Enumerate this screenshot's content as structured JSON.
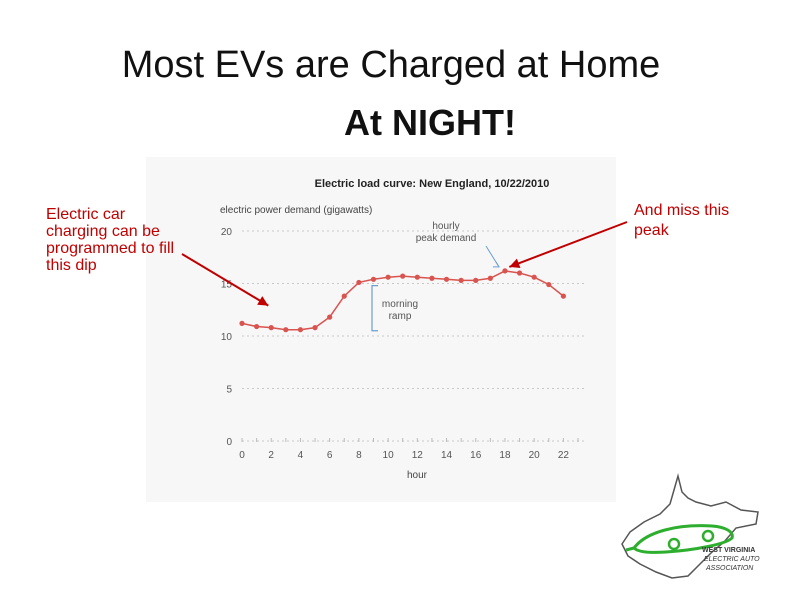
{
  "slide": {
    "title_line1": "Most EVs are Charged at Home",
    "title_line2": "At NIGHT!",
    "note_left": "Electric car charging can be programmed to fill this dip",
    "note_right": "And miss this peak"
  },
  "logo": {
    "text_line1": "WEST VIRGINIA",
    "text_line2": "ELECTRIC AUTO",
    "text_line3": "ASSOCIATION",
    "car_color": "#2eae2e",
    "outline_color": "#555555"
  },
  "colors": {
    "accent_red": "#c00000",
    "series": "#d9534f"
  },
  "chart_data": {
    "type": "line",
    "title": "Electric load curve: New England, 10/22/2010",
    "ylabel": "electric power demand (gigawatts)",
    "xlabel": "hour",
    "ylim": [
      0,
      20
    ],
    "xlim": [
      0,
      23
    ],
    "yticks": [
      0,
      5,
      10,
      15,
      20
    ],
    "xticks": [
      0,
      2,
      4,
      6,
      8,
      10,
      12,
      14,
      16,
      18,
      20,
      22
    ],
    "grid": "horizontal",
    "annotations": [
      {
        "text_line1": "hourly",
        "text_line2": "peak demand",
        "target_x": 18,
        "target_y": 16.2
      },
      {
        "text_line1": "morning",
        "text_line2": "ramp",
        "from_y": 10.5,
        "to_y": 14.8
      }
    ],
    "series": [
      {
        "x": [
          0,
          1,
          2,
          3,
          4,
          5,
          6,
          7,
          8,
          9,
          10,
          11,
          12,
          13,
          14,
          15,
          16,
          17,
          18,
          19,
          20,
          21,
          22
        ],
        "values": [
          11.2,
          10.9,
          10.8,
          10.6,
          10.6,
          10.8,
          11.8,
          13.8,
          15.1,
          15.4,
          15.6,
          15.7,
          15.6,
          15.5,
          15.4,
          15.3,
          15.3,
          15.5,
          16.2,
          16.0,
          15.6,
          14.9,
          13.8
        ]
      }
    ]
  }
}
